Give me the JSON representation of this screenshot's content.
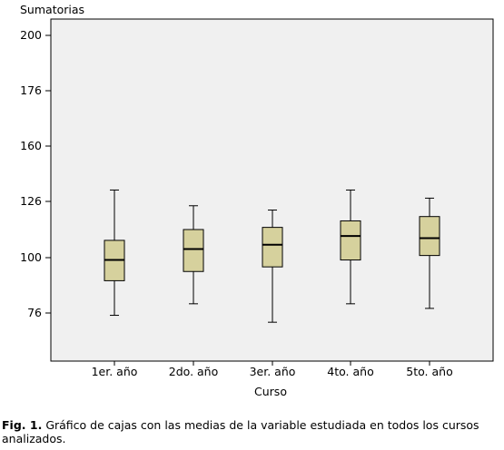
{
  "chart_data": {
    "type": "boxplot",
    "ylabel": "Sumatorias",
    "xlabel": "Curso",
    "y_ticks": [
      "200",
      "176",
      "160",
      "126",
      "100",
      "76"
    ],
    "categories": [
      "1er. año",
      "2do. año",
      "3er. año",
      "4to. año",
      "5to. año"
    ],
    "boxes": [
      {
        "min": 75,
        "q1": 90,
        "median": 99,
        "q3": 108,
        "max": 133
      },
      {
        "min": 80,
        "q1": 94,
        "median": 104,
        "q3": 113,
        "max": 124
      },
      {
        "min": 72,
        "q1": 96,
        "median": 106,
        "q3": 114,
        "max": 122
      },
      {
        "min": 80,
        "q1": 99,
        "median": 110,
        "q3": 117,
        "max": 133
      },
      {
        "min": 78,
        "q1": 101,
        "median": 109,
        "q3": 119,
        "max": 128
      }
    ],
    "colors": {
      "plot_bg": "#f0f0f0",
      "box_fill": "#d6d19d",
      "frame": "#000000"
    }
  },
  "caption": {
    "label": "Fig.  1.",
    "text": "Gráfico de cajas con las medias de la variable estudiada en todos los cursos analizados."
  }
}
